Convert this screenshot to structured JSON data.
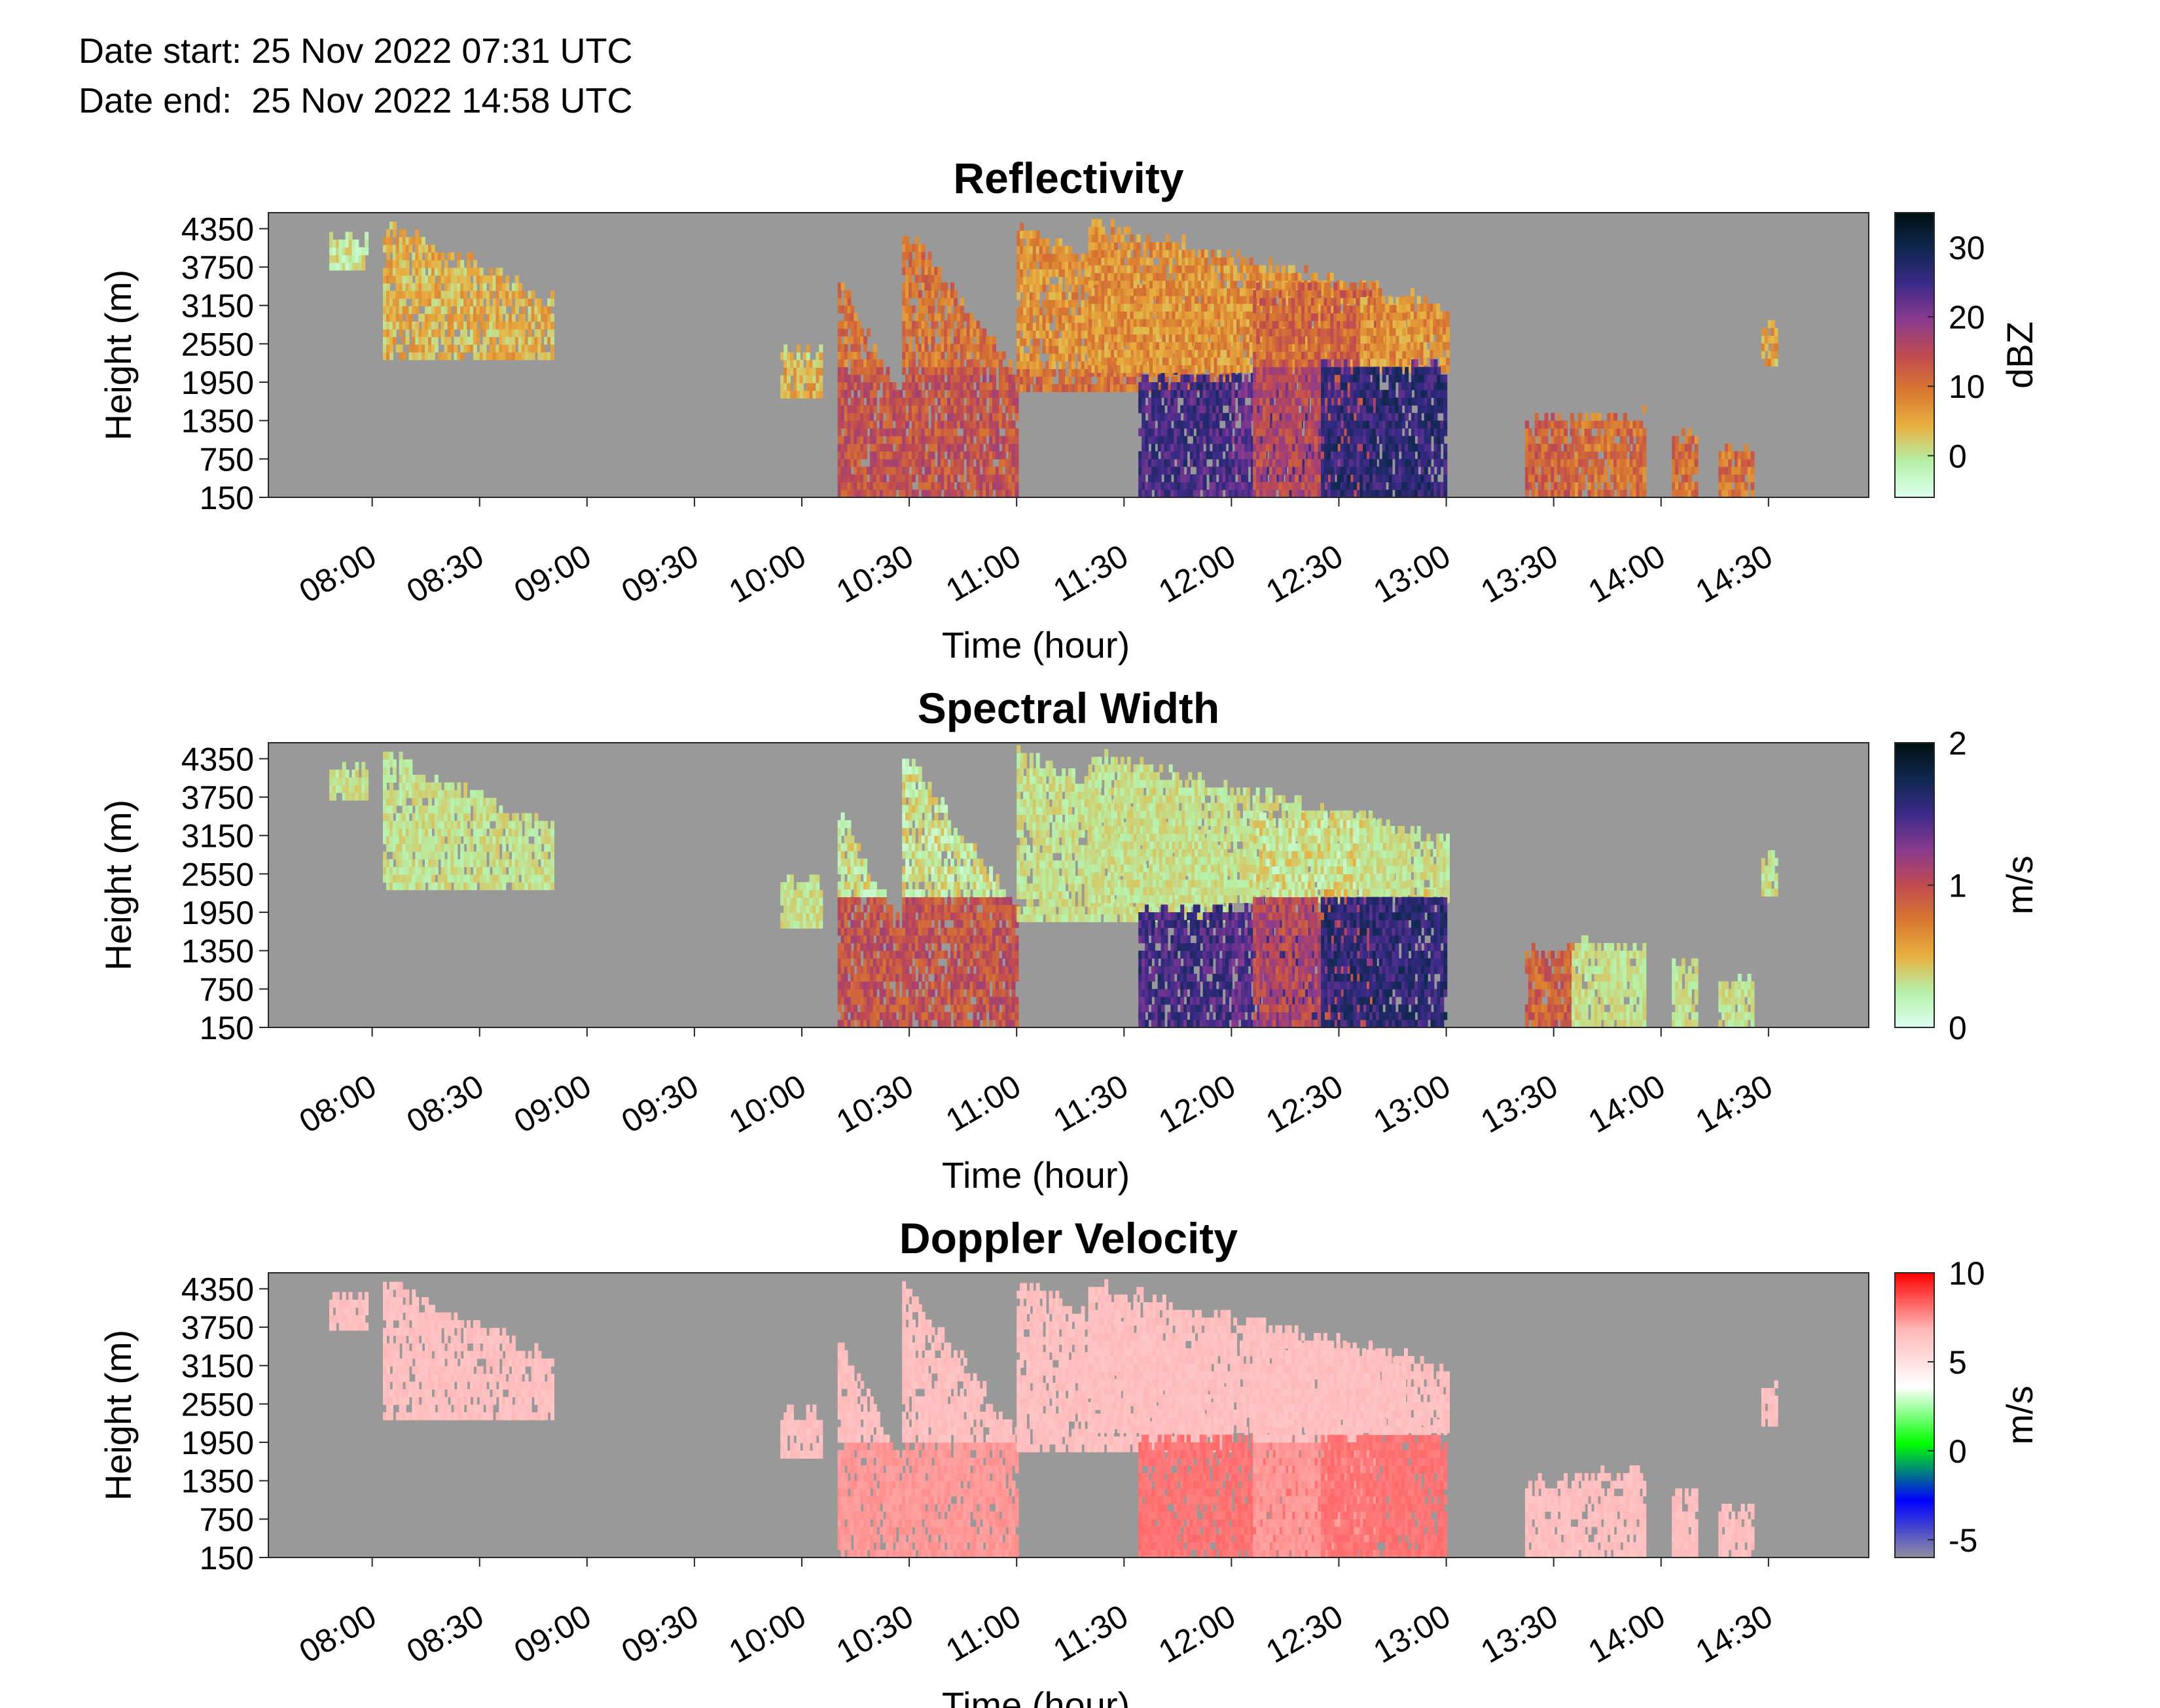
{
  "header": {
    "date_start_label": "Date start:",
    "date_start_value": "25 Nov 2022 07:31 UTC",
    "date_end_label": "Date end:",
    "date_end_value": "25 Nov 2022 14:58 UTC"
  },
  "chart_data": [
    {
      "type": "heatmap",
      "title": "Reflectivity",
      "xlabel": "Time (hour)",
      "ylabel": "Height (m)",
      "x_ticks": [
        "08:00",
        "08:30",
        "09:00",
        "09:30",
        "10:00",
        "10:30",
        "11:00",
        "11:30",
        "12:00",
        "12:30",
        "13:00",
        "13:30",
        "14:00",
        "14:30"
      ],
      "y_ticks": [
        150,
        750,
        1350,
        1950,
        2550,
        3150,
        3750,
        4350
      ],
      "xlim": [
        "07:31",
        "14:58"
      ],
      "ylim": [
        150,
        4600
      ],
      "colorbar": {
        "label": "dBZ",
        "ticks": [
          0,
          10,
          20,
          30
        ],
        "range": [
          -6,
          35
        ],
        "colors": [
          "#ddfff0",
          "#b5f0a8",
          "#e8b040",
          "#d87830",
          "#c04a50",
          "#8a3a90",
          "#3a2a88",
          "#102850",
          "#001010"
        ]
      },
      "background": "#999999",
      "grid": false
    },
    {
      "type": "heatmap",
      "title": "Spectral Width",
      "xlabel": "Time (hour)",
      "ylabel": "Height (m)",
      "x_ticks": [
        "08:00",
        "08:30",
        "09:00",
        "09:30",
        "10:00",
        "10:30",
        "11:00",
        "11:30",
        "12:00",
        "12:30",
        "13:00",
        "13:30",
        "14:00",
        "14:30"
      ],
      "y_ticks": [
        150,
        750,
        1350,
        1950,
        2550,
        3150,
        3750,
        4350
      ],
      "xlim": [
        "07:31",
        "14:58"
      ],
      "ylim": [
        150,
        4600
      ],
      "colorbar": {
        "label": "m/s",
        "ticks": [
          0,
          1,
          2
        ],
        "range": [
          0,
          2
        ],
        "colors": [
          "#ddfff0",
          "#b5f0a8",
          "#e8b040",
          "#d87830",
          "#c04a50",
          "#8a3a90",
          "#3a2a88",
          "#102850",
          "#001010"
        ]
      },
      "background": "#999999",
      "grid": false
    },
    {
      "type": "heatmap",
      "title": "Doppler Velocity",
      "xlabel": "Time (hour)",
      "ylabel": "Height (m)",
      "x_ticks": [
        "08:00",
        "08:30",
        "09:00",
        "09:30",
        "10:00",
        "10:30",
        "11:00",
        "11:30",
        "12:00",
        "12:30",
        "13:00",
        "13:30",
        "14:00",
        "14:30"
      ],
      "y_ticks": [
        150,
        750,
        1350,
        1950,
        2550,
        3150,
        3750,
        4350
      ],
      "xlim": [
        "07:31",
        "14:58"
      ],
      "ylim": [
        150,
        4600
      ],
      "colorbar": {
        "label": "m/s",
        "ticks": [
          -5,
          0,
          5,
          10
        ],
        "range": [
          -6,
          10
        ],
        "colors": [
          "#9090a0",
          "#0000ff",
          "#00ff00",
          "#ffffff",
          "#ffb8b8",
          "#ff0000"
        ]
      },
      "background": "#999999",
      "grid": false
    }
  ]
}
